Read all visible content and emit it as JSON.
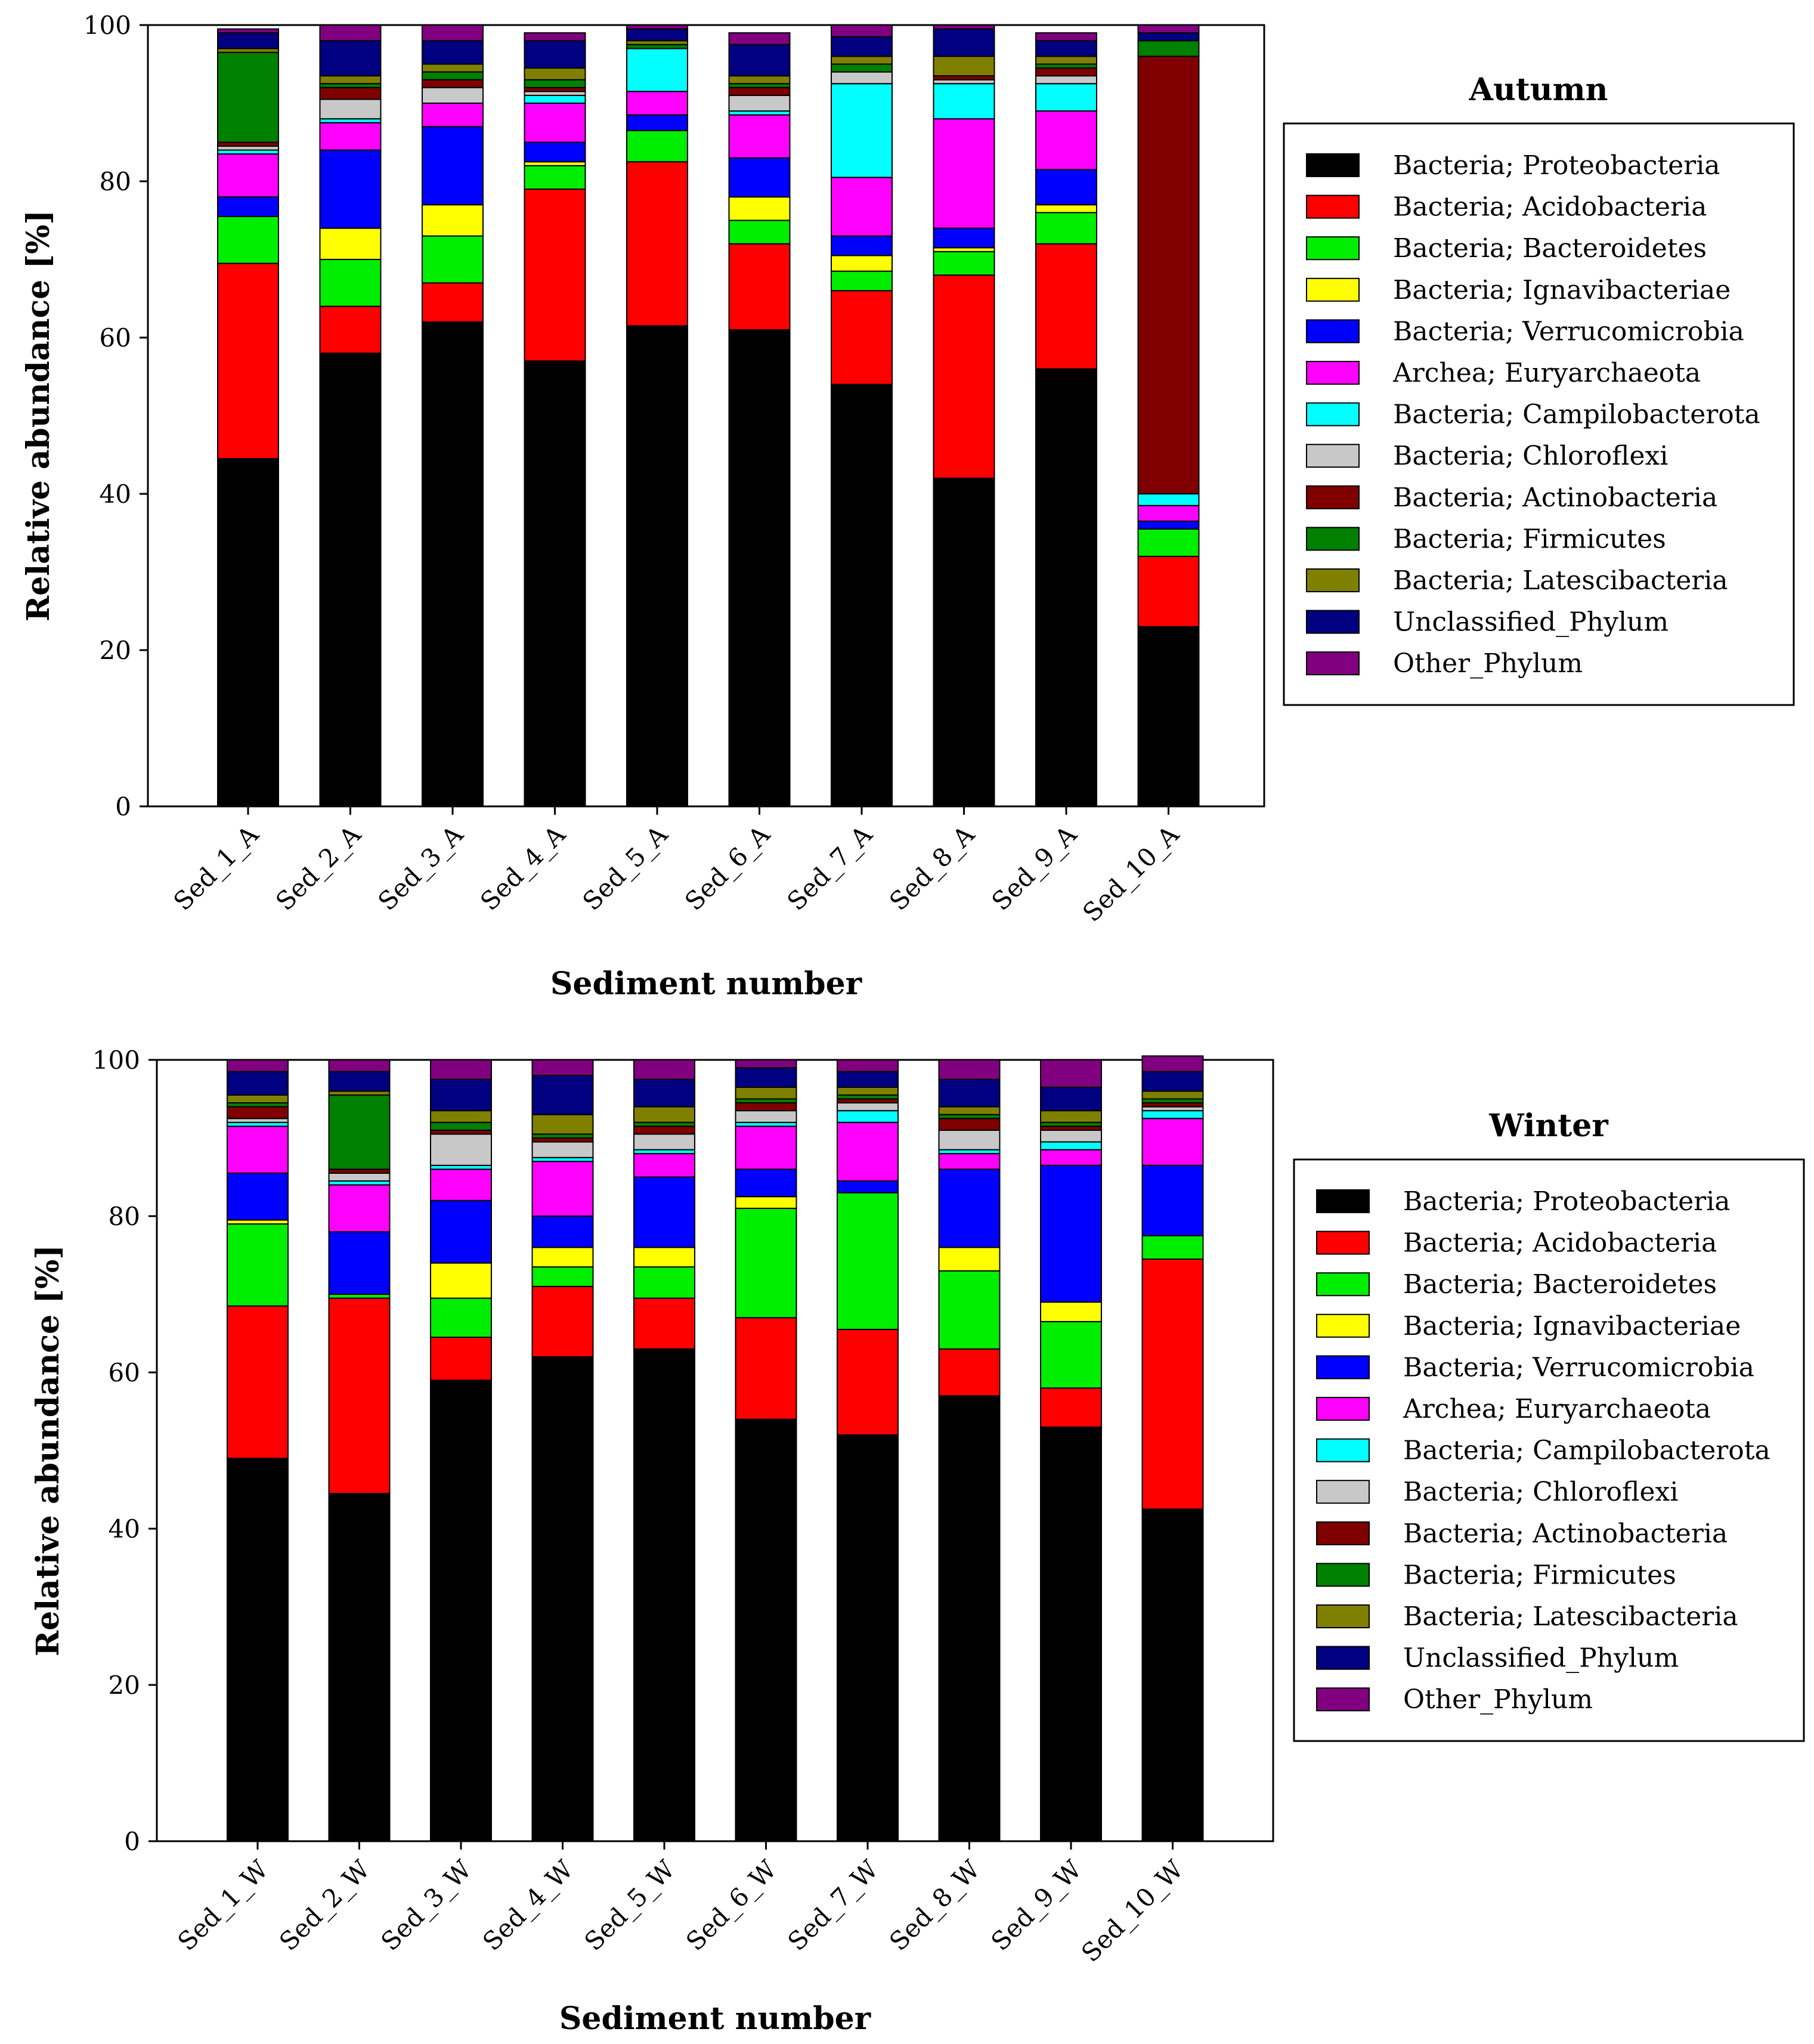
{
  "series_names": [
    "Bacteria; Proteobacteria",
    "Bacteria; Acidobacteria",
    "Bacteria; Bacteroidetes",
    "Bacteria; Ignavibacteriae",
    "Bacteria; Verrucomicrobia",
    "Archea; Euryarchaeota",
    "Bacteria; Campilobacterota",
    "Bacteria; Chloroflexi",
    "Bacteria; Actinobacteria",
    "Bacteria; Firmicutes",
    "Bacteria; Latescibacteria",
    "Unclassified_Phylum",
    "Other_Phylum"
  ],
  "series_colors": [
    "#000000",
    "#ff0000",
    "#00ee00",
    "#ffff00",
    "#0000ff",
    "#ff00ff",
    "#00ffff",
    "#c8c8c8",
    "#800000",
    "#008000",
    "#808000",
    "#000080",
    "#800080"
  ],
  "chart_data": [
    {
      "type": "bar",
      "stacked": true,
      "title": "Autumn",
      "xlabel": "Sediment number",
      "ylabel": "Relative abundance [%]",
      "ylim": [
        0,
        100
      ],
      "yticks": [
        0,
        20,
        40,
        60,
        80,
        100
      ],
      "legend_position": "right",
      "categories": [
        "Sed_1_A",
        "Sed_2_A",
        "Sed_3_A",
        "Sed_4_A",
        "Sed_5_A",
        "Sed_6_A",
        "Sed_7_A",
        "Sed_8_A",
        "Sed_9_A",
        "Sed_10_A"
      ],
      "series": [
        {
          "name": "Bacteria; Proteobacteria",
          "values": [
            44.5,
            58.0,
            62.0,
            57.0,
            61.5,
            61.0,
            54.0,
            42.0,
            56.0,
            23.0
          ]
        },
        {
          "name": "Bacteria; Acidobacteria",
          "values": [
            25.0,
            6.0,
            5.0,
            22.0,
            21.0,
            11.0,
            12.0,
            26.0,
            16.0,
            9.0
          ]
        },
        {
          "name": "Bacteria; Bacteroidetes",
          "values": [
            6.0,
            6.0,
            6.0,
            3.0,
            4.0,
            3.0,
            2.5,
            3.0,
            4.0,
            3.5
          ]
        },
        {
          "name": "Bacteria; Ignavibacteriae",
          "values": [
            0.0,
            4.0,
            4.0,
            0.5,
            0.0,
            3.0,
            2.0,
            0.5,
            1.0,
            0.0
          ]
        },
        {
          "name": "Bacteria; Verrucomicrobia",
          "values": [
            2.5,
            10.0,
            10.0,
            2.5,
            2.0,
            5.0,
            2.5,
            2.5,
            4.5,
            1.0
          ]
        },
        {
          "name": "Archea; Euryarchaeota",
          "values": [
            5.5,
            3.5,
            3.0,
            5.0,
            3.0,
            5.5,
            7.5,
            14.0,
            7.5,
            2.0
          ]
        },
        {
          "name": "Bacteria; Campilobacterota",
          "values": [
            0.5,
            0.5,
            0.0,
            1.0,
            5.5,
            0.5,
            12.0,
            4.5,
            3.5,
            1.5
          ]
        },
        {
          "name": "Bacteria; Chloroflexi",
          "values": [
            0.5,
            2.5,
            2.0,
            0.5,
            0.0,
            2.0,
            1.5,
            0.5,
            1.0,
            0.0
          ]
        },
        {
          "name": "Bacteria; Actinobacteria",
          "values": [
            0.5,
            1.5,
            1.0,
            0.5,
            0.0,
            1.0,
            0.0,
            0.5,
            1.0,
            56.0
          ]
        },
        {
          "name": "Bacteria; Firmicutes",
          "values": [
            11.5,
            0.5,
            1.0,
            1.0,
            0.5,
            0.5,
            1.0,
            0.0,
            0.5,
            2.0
          ]
        },
        {
          "name": "Bacteria; Latescibacteria",
          "values": [
            0.5,
            1.0,
            1.0,
            1.5,
            0.5,
            1.0,
            1.0,
            2.5,
            1.0,
            0.0
          ]
        },
        {
          "name": "Unclassified_Phylum",
          "values": [
            2.0,
            4.5,
            3.0,
            3.5,
            1.5,
            4.0,
            2.5,
            3.5,
            2.0,
            1.0
          ]
        },
        {
          "name": "Other_Phylum",
          "values": [
            0.5,
            2.0,
            2.0,
            1.0,
            0.5,
            1.5,
            1.5,
            0.5,
            1.0,
            1.0
          ]
        }
      ]
    },
    {
      "type": "bar",
      "stacked": true,
      "title": "Winter",
      "xlabel": "Sediment number",
      "ylabel": "Relative abundance [%]",
      "ylim": [
        0,
        100
      ],
      "yticks": [
        0,
        20,
        40,
        60,
        80,
        100
      ],
      "legend_position": "right",
      "categories": [
        "Sed_1_W",
        "Sed_2_W",
        "Sed_3_W",
        "Sed_4_W",
        "Sed_5_W",
        "Sed_6_W",
        "Sed_7_W",
        "Sed_8_W",
        "Sed_9_W",
        "Sed_10_W"
      ],
      "series": [
        {
          "name": "Bacteria; Proteobacteria",
          "values": [
            49.0,
            44.5,
            59.0,
            62.0,
            63.0,
            54.0,
            52.0,
            57.0,
            53.0,
            42.5
          ]
        },
        {
          "name": "Bacteria; Acidobacteria",
          "values": [
            19.5,
            25.0,
            5.5,
            9.0,
            6.5,
            13.0,
            13.5,
            6.0,
            5.0,
            32.0
          ]
        },
        {
          "name": "Bacteria; Bacteroidetes",
          "values": [
            10.5,
            0.5,
            5.0,
            2.5,
            4.0,
            14.0,
            17.5,
            10.0,
            8.5,
            3.0
          ]
        },
        {
          "name": "Bacteria; Ignavibacteriae",
          "values": [
            0.5,
            0.0,
            4.5,
            2.5,
            2.5,
            1.5,
            0.0,
            3.0,
            2.5,
            0.0
          ]
        },
        {
          "name": "Bacteria; Verrucomicrobia",
          "values": [
            6.0,
            8.0,
            8.0,
            4.0,
            9.0,
            3.5,
            1.5,
            10.0,
            17.5,
            9.0
          ]
        },
        {
          "name": "Archea; Euryarchaeota",
          "values": [
            6.0,
            6.0,
            4.0,
            7.0,
            3.0,
            5.5,
            7.5,
            2.0,
            2.0,
            6.0
          ]
        },
        {
          "name": "Bacteria; Campilobacterota",
          "values": [
            0.5,
            0.5,
            0.5,
            0.5,
            0.5,
            0.5,
            1.5,
            0.5,
            1.0,
            1.0
          ]
        },
        {
          "name": "Bacteria; Chloroflexi",
          "values": [
            0.5,
            1.0,
            4.0,
            2.0,
            2.0,
            1.5,
            1.0,
            2.5,
            1.5,
            0.5
          ]
        },
        {
          "name": "Bacteria; Actinobacteria",
          "values": [
            1.5,
            0.5,
            0.5,
            0.5,
            1.0,
            1.0,
            0.5,
            1.5,
            0.5,
            0.5
          ]
        },
        {
          "name": "Bacteria; Firmicutes",
          "values": [
            0.5,
            9.5,
            1.0,
            0.5,
            0.5,
            0.5,
            0.5,
            0.5,
            0.5,
            0.5
          ]
        },
        {
          "name": "Bacteria; Latescibacteria",
          "values": [
            1.0,
            0.5,
            1.5,
            2.5,
            2.0,
            1.5,
            1.0,
            1.0,
            1.5,
            1.0
          ]
        },
        {
          "name": "Unclassified_Phylum",
          "values": [
            3.0,
            2.5,
            4.0,
            5.0,
            3.5,
            2.5,
            2.0,
            3.5,
            3.0,
            2.5
          ]
        },
        {
          "name": "Other_Phylum",
          "values": [
            1.5,
            1.5,
            2.5,
            2.0,
            2.5,
            1.0,
            1.5,
            2.5,
            3.5,
            2.0
          ]
        }
      ]
    }
  ]
}
